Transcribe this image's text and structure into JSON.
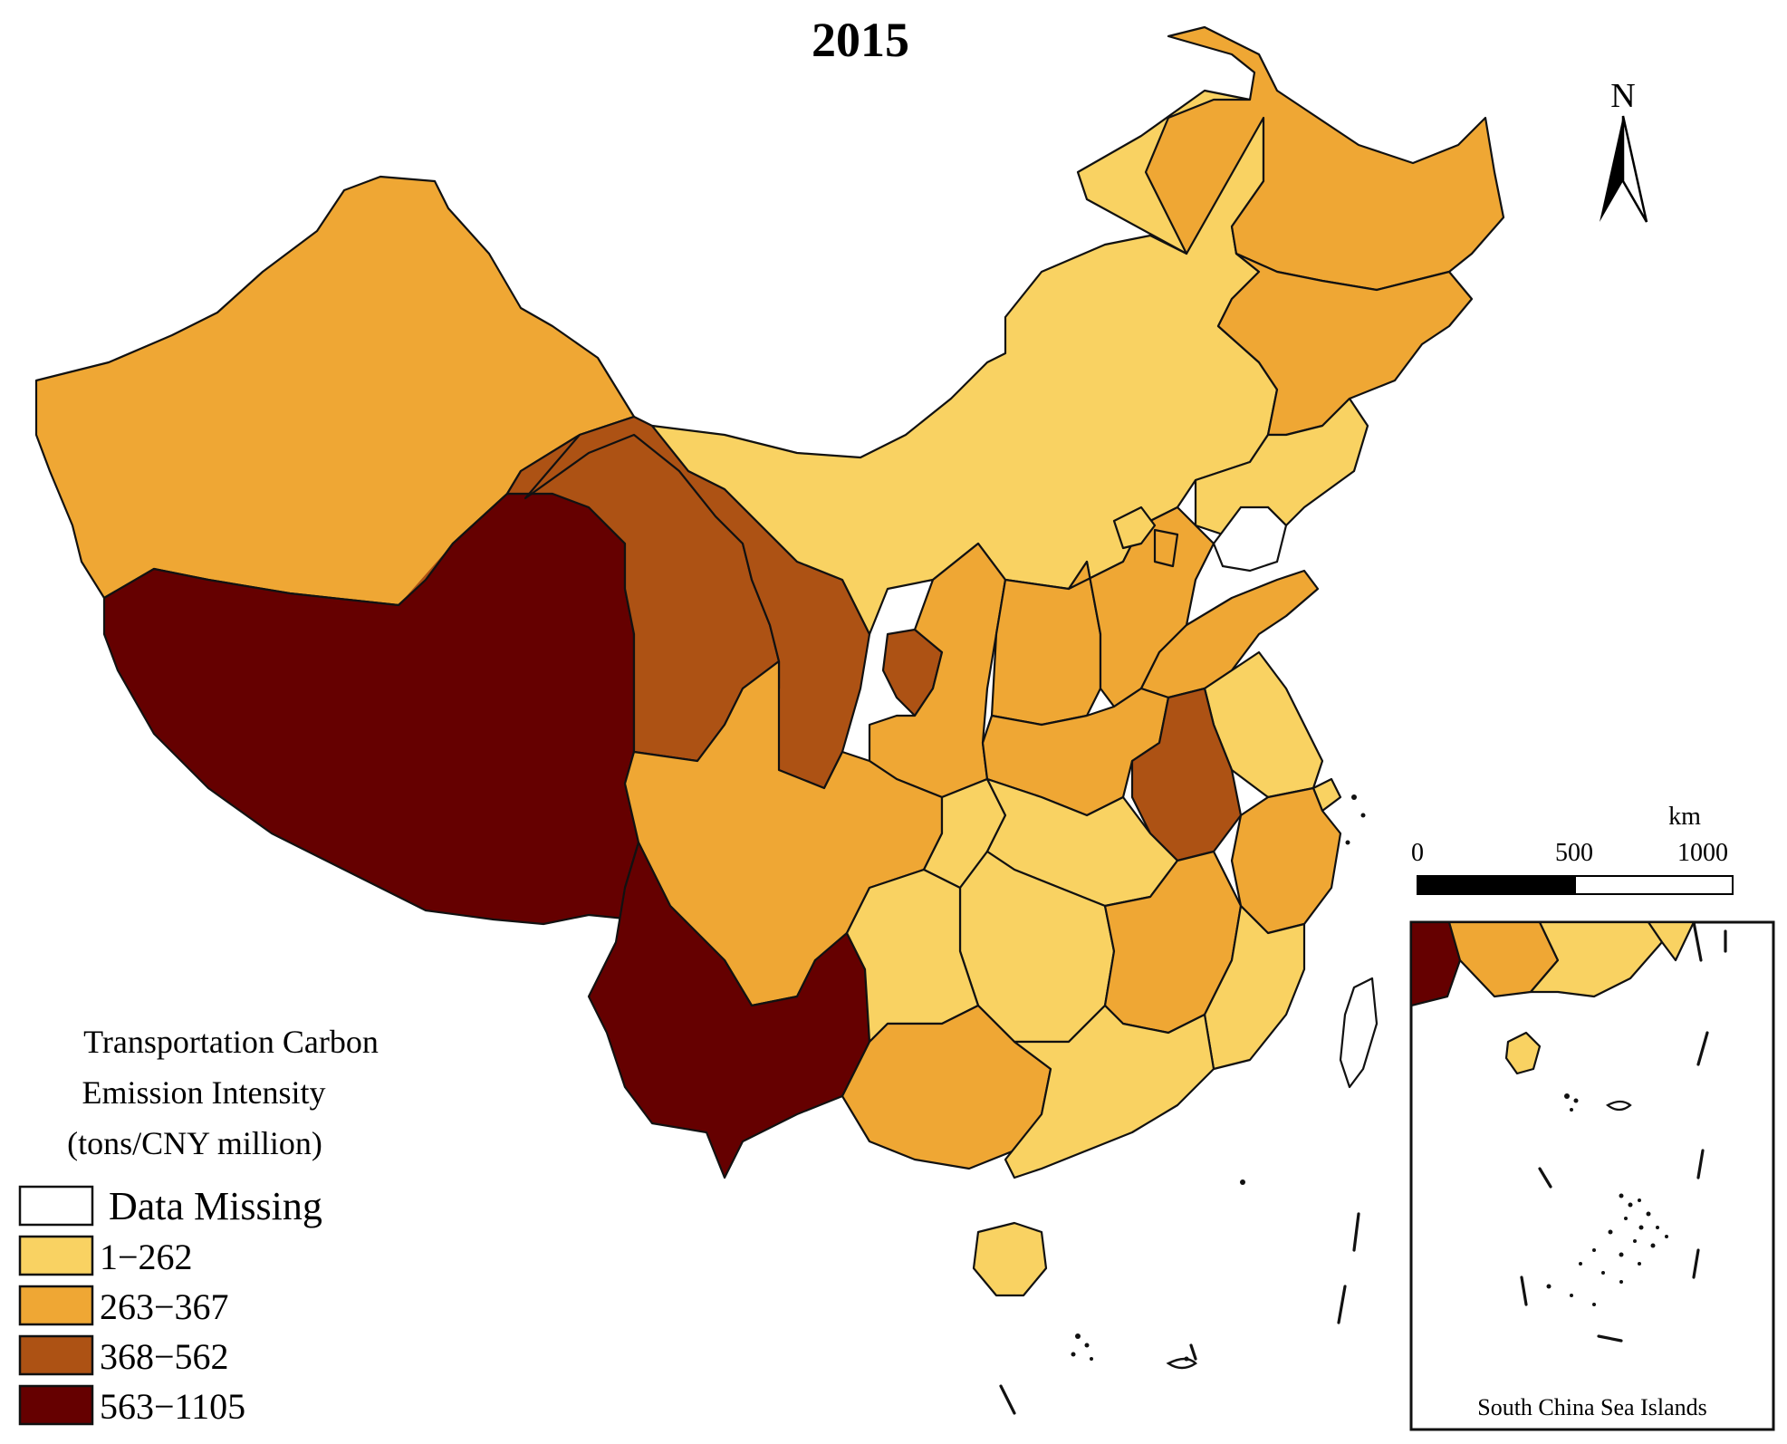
{
  "title": "2015",
  "north_arrow": {
    "label": "N",
    "icon": "north-arrow-icon"
  },
  "scale_bar": {
    "unit": "km",
    "ticks": [
      "0",
      "500",
      "1000"
    ]
  },
  "inset": {
    "label": "South China Sea Islands"
  },
  "legend": {
    "title_lines": [
      "Transportation Carbon",
      "Emission Intensity",
      "(tons/CNY million)"
    ],
    "items": [
      {
        "label": "Data Missing",
        "color": "#ffffff"
      },
      {
        "label": "1−262",
        "color": "#f9d262"
      },
      {
        "label": "263−367",
        "color": "#efa734"
      },
      {
        "label": "368−562",
        "color": "#ad5214"
      },
      {
        "label": "563−1105",
        "color": "#650000"
      }
    ]
  },
  "map_data": {
    "classes": [
      "Data Missing",
      "1-262",
      "263-367",
      "368-562",
      "563-1105"
    ],
    "regions": [
      {
        "id": "xinjiang",
        "class": 2
      },
      {
        "id": "tibet",
        "class": 4
      },
      {
        "id": "qinghai",
        "class": 3
      },
      {
        "id": "gansu",
        "class": 3
      },
      {
        "id": "inner-mongolia",
        "class": 1
      },
      {
        "id": "heilongjiang",
        "class": 2
      },
      {
        "id": "jilin",
        "class": 2
      },
      {
        "id": "liaoning",
        "class": 1
      },
      {
        "id": "ningxia",
        "class": 3
      },
      {
        "id": "shaanxi",
        "class": 2
      },
      {
        "id": "shanxi",
        "class": 2
      },
      {
        "id": "hebei",
        "class": 2
      },
      {
        "id": "beijing",
        "class": 1
      },
      {
        "id": "tianjin",
        "class": 2
      },
      {
        "id": "shandong",
        "class": 2
      },
      {
        "id": "henan",
        "class": 2
      },
      {
        "id": "jiangsu",
        "class": 1
      },
      {
        "id": "anhui",
        "class": 3
      },
      {
        "id": "shanghai",
        "class": 1
      },
      {
        "id": "zhejiang",
        "class": 2
      },
      {
        "id": "sichuan",
        "class": 2
      },
      {
        "id": "chongqing",
        "class": 1
      },
      {
        "id": "hubei",
        "class": 1
      },
      {
        "id": "hunan",
        "class": 1
      },
      {
        "id": "jiangxi",
        "class": 2
      },
      {
        "id": "fujian",
        "class": 1
      },
      {
        "id": "yunnan",
        "class": 4
      },
      {
        "id": "guizhou",
        "class": 1
      },
      {
        "id": "guangxi",
        "class": 2
      },
      {
        "id": "guangdong",
        "class": 1
      },
      {
        "id": "hainan",
        "class": 1
      },
      {
        "id": "taiwan",
        "class": 0
      }
    ]
  }
}
